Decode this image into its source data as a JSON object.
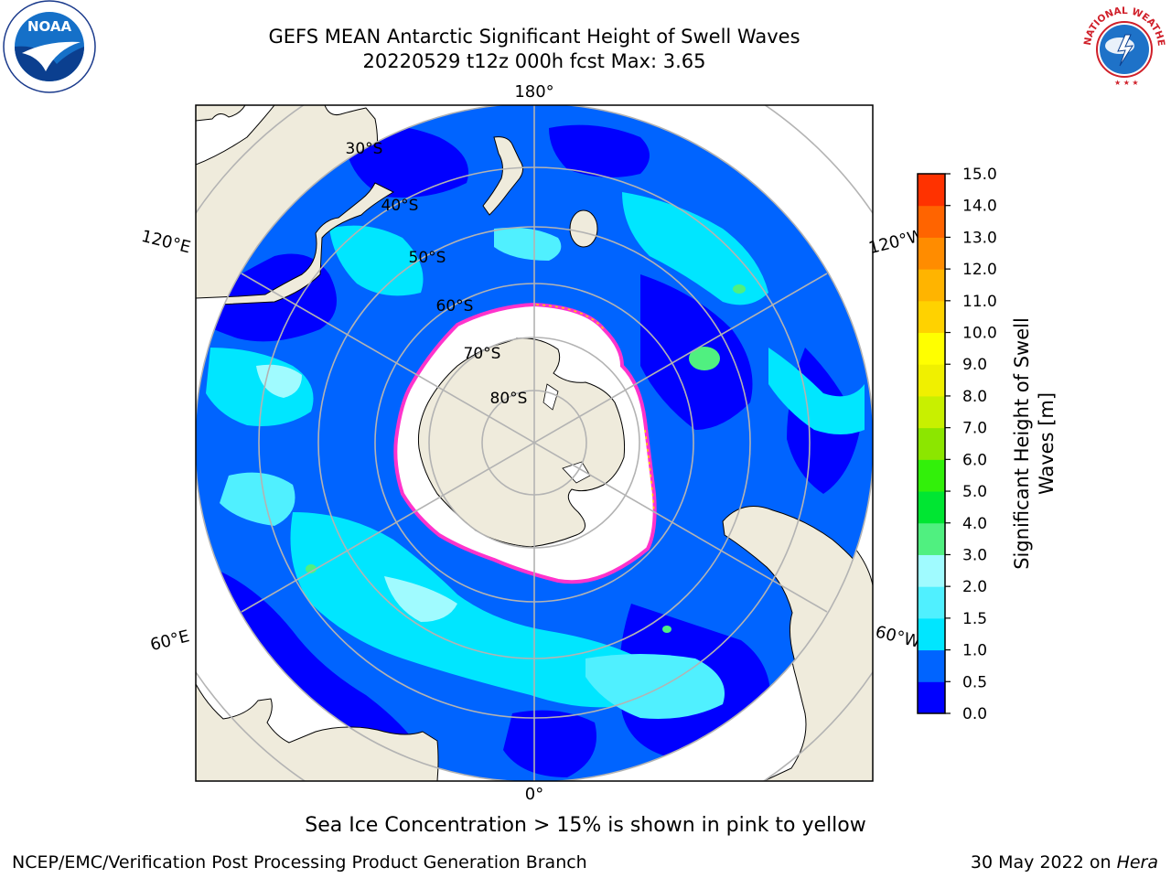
{
  "header": {
    "title_line1": "GEFS MEAN Antarctic Significant Height of Swell Waves",
    "title_line2": "20220529 t12z 000h fcst   Max: 3.65"
  },
  "map": {
    "projection": "south-polar-stereographic",
    "longitude_labels": {
      "top": "180°",
      "left": "120°E",
      "right": "120°W",
      "bottom_left": "60°E",
      "bottom_right": "60°W",
      "bottom": "0°"
    },
    "latitude_labels": [
      "30°S",
      "40°S",
      "50°S",
      "60°S",
      "70°S",
      "80°S"
    ],
    "colors": {
      "land": "#efebdc",
      "ice": "#ffffff",
      "ice_edge": "#ff33cc"
    }
  },
  "colorbar": {
    "label_line1": "Significant Height of Swell",
    "label_line2": "Waves [m]",
    "ticks": [
      "0.0",
      "0.5",
      "1.0",
      "1.5",
      "2.0",
      "3.0",
      "4.0",
      "5.0",
      "6.0",
      "7.0",
      "8.0",
      "9.0",
      "10.0",
      "11.0",
      "12.0",
      "13.0",
      "14.0",
      "15.0"
    ],
    "colors": [
      "#0000ff",
      "#0064ff",
      "#00e6ff",
      "#50f0ff",
      "#a0fbff",
      "#50f080",
      "#00e632",
      "#32f00a",
      "#8ce600",
      "#c8f000",
      "#f0f000",
      "#ffff00",
      "#ffd200",
      "#ffb400",
      "#ff8c00",
      "#ff6400",
      "#ff3200"
    ]
  },
  "captions": {
    "sea_ice": "Sea Ice Concentration > 15% is shown in pink to yellow"
  },
  "footer": {
    "left": "NCEP/EMC/Verification Post Processing Product Generation Branch",
    "right_prefix": "30 May 2022 on ",
    "right_machine": "Hera"
  },
  "logos": {
    "noaa_text": "NOAA",
    "nws_text": "NATIONAL WEATHER SERVICE"
  }
}
